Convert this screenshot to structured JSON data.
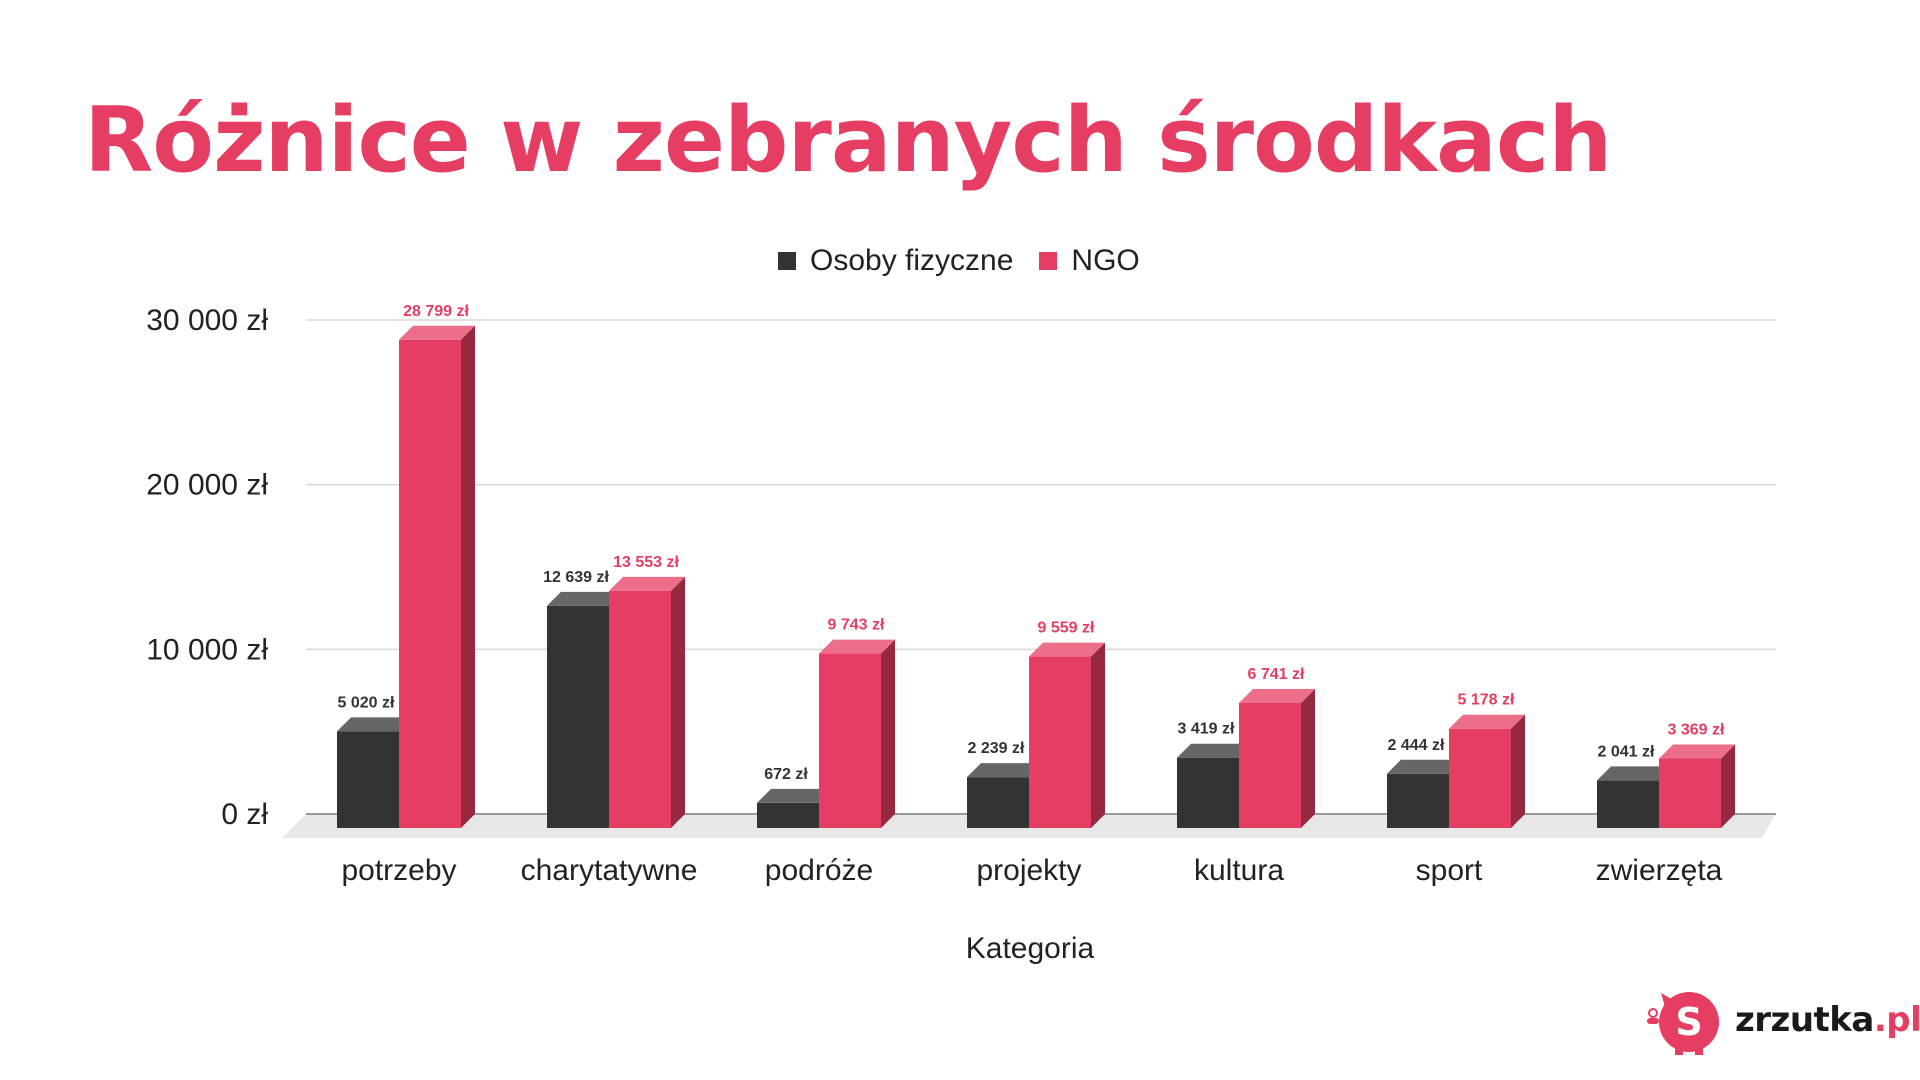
{
  "header": {
    "title": "Różnice w zebranych środkach"
  },
  "legend": {
    "series1": "Osoby fizyczne",
    "series2": "NGO"
  },
  "brand": {
    "name": "zrzutka",
    "suffix": ".pl"
  },
  "colors": {
    "series1": "#333333",
    "series2": "#E63E62",
    "title": "#E63E62",
    "grid": "#d9d9d9"
  },
  "chart_data": {
    "type": "bar",
    "xlabel": "Kategoria",
    "ylabel": "",
    "ylim": [
      0,
      30000
    ],
    "yticks": [
      0,
      10000,
      20000,
      30000
    ],
    "ytick_labels": [
      "0 zł",
      "10 000 zł",
      "20 000 zł",
      "30 000 zł"
    ],
    "grid": true,
    "legend_position": "top-center",
    "categories": [
      "potrzeby",
      "charytatywne",
      "podróże",
      "projekty",
      "kultura",
      "sport",
      "zwierzęta"
    ],
    "series": [
      {
        "name": "Osoby fizyczne",
        "values": [
          5020,
          12639,
          672,
          2239,
          3419,
          2444,
          2041
        ],
        "labels": [
          "5 020 zł",
          "12 639 zł",
          "672 zł",
          "2 239 zł",
          "3 419 zł",
          "2 444 zł",
          "2 041 zł"
        ]
      },
      {
        "name": "NGO",
        "values": [
          28799,
          13553,
          9743,
          9559,
          6741,
          5178,
          3369
        ],
        "labels": [
          "28 799 zł",
          "13 553 zł",
          "9 743 zł",
          "9 559 zł",
          "6 741 zł",
          "5 178 zł",
          "3 369 zł"
        ]
      }
    ]
  }
}
